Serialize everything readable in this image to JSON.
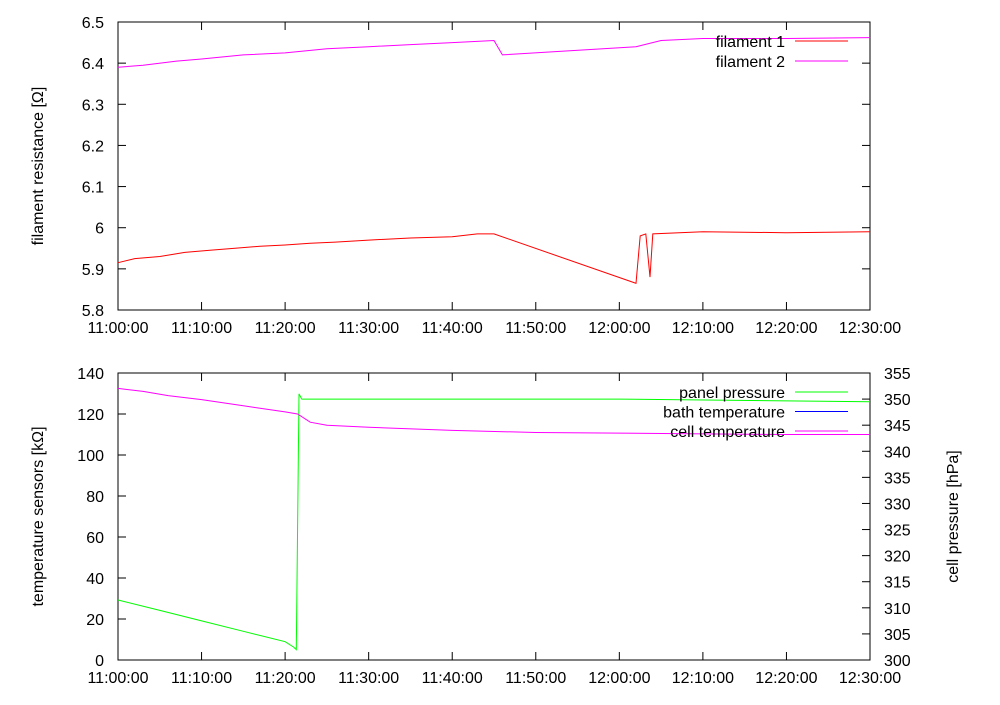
{
  "chart_data": [
    {
      "type": "line",
      "title": "",
      "xlabel": "",
      "ylabel": "filament resistance [Ω]",
      "xlim": [
        "11:00:00",
        "12:30:00"
      ],
      "ylim": [
        5.8,
        6.5
      ],
      "x_ticks": [
        "11:00:00",
        "11:10:00",
        "11:20:00",
        "11:30:00",
        "11:40:00",
        "11:50:00",
        "12:00:00",
        "12:10:00",
        "12:20:00",
        "12:30:00"
      ],
      "y_ticks": [
        "5.8",
        "5.9",
        "6",
        "6.1",
        "6.2",
        "6.3",
        "6.4",
        "6.5"
      ],
      "legend_position": "top-right",
      "grid": false,
      "series": [
        {
          "name": "filament 1",
          "color": "#ff0000",
          "points": [
            [
              "11:00:00",
              5.915
            ],
            [
              "11:02:00",
              5.925
            ],
            [
              "11:05:00",
              5.93
            ],
            [
              "11:08:00",
              5.94
            ],
            [
              "11:11:00",
              5.945
            ],
            [
              "11:14:00",
              5.95
            ],
            [
              "11:17:00",
              5.955
            ],
            [
              "11:20:00",
              5.958
            ],
            [
              "11:23:00",
              5.962
            ],
            [
              "11:26:00",
              5.965
            ],
            [
              "11:30:00",
              5.97
            ],
            [
              "11:35:00",
              5.975
            ],
            [
              "11:40:00",
              5.978
            ],
            [
              "11:43:00",
              5.985
            ],
            [
              "11:45:00",
              5.985
            ],
            [
              "12:02:00",
              5.865
            ],
            [
              "12:02:30",
              5.98
            ],
            [
              "12:03:10",
              5.985
            ],
            [
              "12:03:40",
              5.88
            ],
            [
              "12:04:00",
              5.985
            ],
            [
              "12:10:00",
              5.99
            ],
            [
              "12:20:00",
              5.988
            ],
            [
              "12:30:00",
              5.99
            ]
          ]
        },
        {
          "name": "filament 2",
          "color": "#ff00ff",
          "points": [
            [
              "11:00:00",
              6.39
            ],
            [
              "11:03:00",
              6.395
            ],
            [
              "11:07:00",
              6.405
            ],
            [
              "11:10:00",
              6.41
            ],
            [
              "11:15:00",
              6.42
            ],
            [
              "11:20:00",
              6.425
            ],
            [
              "11:25:00",
              6.435
            ],
            [
              "11:30:00",
              6.44
            ],
            [
              "11:35:00",
              6.445
            ],
            [
              "11:40:00",
              6.45
            ],
            [
              "11:45:00",
              6.455
            ],
            [
              "11:46:00",
              6.42
            ],
            [
              "12:02:00",
              6.44
            ],
            [
              "12:05:00",
              6.455
            ],
            [
              "12:10:00",
              6.46
            ],
            [
              "12:20:00",
              6.46
            ],
            [
              "12:30:00",
              6.462
            ]
          ]
        }
      ]
    },
    {
      "type": "line",
      "title": "",
      "xlabel": "",
      "ylabel": "temperature sensors [kΩ]",
      "y2label": "cell pressure [hPa]",
      "xlim": [
        "11:00:00",
        "12:30:00"
      ],
      "ylim": [
        0,
        140
      ],
      "y2lim": [
        300,
        355
      ],
      "x_ticks": [
        "11:00:00",
        "11:10:00",
        "11:20:00",
        "11:30:00",
        "11:40:00",
        "11:50:00",
        "12:00:00",
        "12:10:00",
        "12:20:00",
        "12:30:00"
      ],
      "y_ticks": [
        "0",
        "20",
        "40",
        "60",
        "80",
        "100",
        "120",
        "140"
      ],
      "y2_ticks": [
        "300",
        "305",
        "310",
        "315",
        "320",
        "325",
        "330",
        "335",
        "340",
        "345",
        "350",
        "355"
      ],
      "legend_position": "top-right",
      "grid": false,
      "series": [
        {
          "name": "panel pressure",
          "color": "#00ff00",
          "axis": "y2",
          "points": [
            [
              "11:00:00",
              311.5
            ],
            [
              "11:05:00",
              309.5
            ],
            [
              "11:10:00",
              307.5
            ],
            [
              "11:15:00",
              305.5
            ],
            [
              "11:20:00",
              303.5
            ],
            [
              "11:21:00",
              302.5
            ],
            [
              "11:21:20",
              302.0
            ],
            [
              "11:21:40",
              351.0
            ],
            [
              "11:22:00",
              350.0
            ],
            [
              "12:00:00",
              350.0
            ],
            [
              "12:30:00",
              349.5
            ]
          ]
        },
        {
          "name": "bath temperature",
          "color": "#0000ff",
          "axis": "y",
          "points": []
        },
        {
          "name": "cell temperature",
          "color": "#ff00ff",
          "axis": "y",
          "points": [
            [
              "11:00:00",
              132.5
            ],
            [
              "11:03:00",
              131
            ],
            [
              "11:06:00",
              129
            ],
            [
              "11:10:00",
              127
            ],
            [
              "11:15:00",
              124
            ],
            [
              "11:20:00",
              121
            ],
            [
              "11:21:30",
              120
            ],
            [
              "11:23:00",
              116
            ],
            [
              "11:25:00",
              114.5
            ],
            [
              "11:30:00",
              113.5
            ],
            [
              "11:40:00",
              112
            ],
            [
              "11:50:00",
              111
            ],
            [
              "12:00:00",
              110.7
            ],
            [
              "12:10:00",
              110.3
            ],
            [
              "12:20:00",
              110
            ],
            [
              "12:30:00",
              110
            ]
          ]
        }
      ]
    }
  ]
}
